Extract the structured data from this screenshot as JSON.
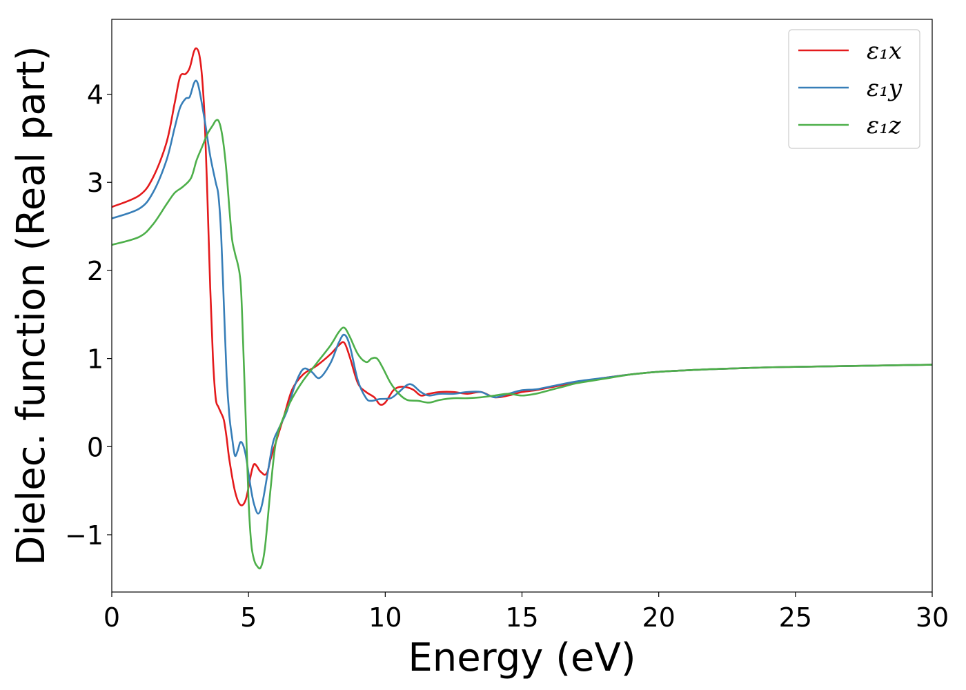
{
  "chart_data": {
    "type": "line",
    "title": "",
    "xlabel": "Energy (eV)",
    "ylabel": "Dielec. function (Real part)",
    "xlim": [
      0,
      30
    ],
    "ylim": [
      -1.65,
      4.85
    ],
    "xticks": [
      0,
      5,
      10,
      15,
      20,
      25,
      30
    ],
    "xtick_labels": [
      "0",
      "5",
      "10",
      "15",
      "20",
      "25",
      "30"
    ],
    "yticks": [
      -1,
      0,
      1,
      2,
      3,
      4
    ],
    "ytick_labels": [
      "−1",
      "0",
      "1",
      "2",
      "3",
      "4"
    ],
    "grid": false,
    "legend_position": "top-right",
    "series": [
      {
        "name": "ε₁x",
        "color": "#e41a1c",
        "x": [
          0,
          1,
          1.5,
          2,
          2.3,
          2.5,
          2.7,
          2.85,
          3.0,
          3.1,
          3.2,
          3.3,
          3.4,
          3.5,
          3.6,
          3.7,
          3.8,
          3.9,
          4.0,
          4.1,
          4.2,
          4.3,
          4.5,
          4.7,
          4.9,
          5.1,
          5.2,
          5.3,
          5.4,
          5.5,
          5.6,
          5.7,
          5.8,
          6.0,
          6.3,
          6.6,
          7.0,
          7.5,
          8.0,
          8.3,
          8.5,
          8.7,
          9.0,
          9.3,
          9.6,
          9.8,
          10.0,
          10.3,
          10.6,
          11.0,
          11.3,
          11.6,
          12.0,
          12.5,
          13.0,
          13.5,
          14.0,
          14.5,
          15.0,
          15.5,
          16.0,
          17.0,
          18.0,
          19.0,
          20.0,
          22.0,
          24.0,
          26.0,
          28.0,
          30.0
        ],
        "values": [
          2.72,
          2.85,
          3.05,
          3.45,
          3.9,
          4.2,
          4.23,
          4.3,
          4.48,
          4.52,
          4.45,
          4.2,
          3.7,
          2.8,
          1.8,
          1.0,
          0.55,
          0.45,
          0.38,
          0.3,
          0.1,
          -0.15,
          -0.5,
          -0.66,
          -0.6,
          -0.3,
          -0.2,
          -0.22,
          -0.27,
          -0.3,
          -0.32,
          -0.28,
          -0.15,
          0.05,
          0.35,
          0.65,
          0.82,
          0.92,
          1.05,
          1.15,
          1.18,
          1.02,
          0.72,
          0.62,
          0.56,
          0.48,
          0.5,
          0.64,
          0.68,
          0.65,
          0.58,
          0.6,
          0.62,
          0.62,
          0.6,
          0.62,
          0.56,
          0.58,
          0.62,
          0.64,
          0.67,
          0.73,
          0.78,
          0.82,
          0.85,
          0.88,
          0.9,
          0.91,
          0.92,
          0.93
        ]
      },
      {
        "name": "ε₁y",
        "color": "#377eb8",
        "x": [
          0,
          1,
          1.5,
          2,
          2.3,
          2.5,
          2.7,
          2.85,
          3.0,
          3.1,
          3.2,
          3.4,
          3.6,
          3.8,
          3.9,
          4.0,
          4.1,
          4.2,
          4.3,
          4.4,
          4.5,
          4.6,
          4.7,
          4.8,
          4.9,
          5.0,
          5.1,
          5.2,
          5.35,
          5.5,
          5.7,
          5.9,
          6.1,
          6.4,
          6.7,
          7.0,
          7.3,
          7.6,
          8.0,
          8.3,
          8.5,
          8.7,
          9.0,
          9.3,
          9.5,
          9.8,
          10.2,
          10.5,
          10.8,
          11.0,
          11.3,
          11.6,
          12.0,
          12.5,
          13.0,
          13.5,
          14.0,
          14.5,
          15.0,
          15.5,
          16.0,
          17.0,
          18.0,
          19.0,
          20.0,
          22.0,
          24.0,
          26.0,
          28.0,
          30.0
        ],
        "values": [
          2.59,
          2.7,
          2.88,
          3.25,
          3.62,
          3.85,
          3.95,
          3.97,
          4.12,
          4.15,
          4.05,
          3.7,
          3.3,
          3.0,
          2.85,
          2.4,
          1.6,
          0.8,
          0.35,
          0.1,
          -0.1,
          -0.05,
          0.05,
          0.02,
          -0.1,
          -0.3,
          -0.5,
          -0.65,
          -0.76,
          -0.65,
          -0.3,
          0.05,
          0.2,
          0.4,
          0.7,
          0.88,
          0.85,
          0.78,
          0.95,
          1.18,
          1.27,
          1.15,
          0.75,
          0.55,
          0.52,
          0.54,
          0.55,
          0.62,
          0.7,
          0.7,
          0.62,
          0.58,
          0.6,
          0.6,
          0.62,
          0.62,
          0.56,
          0.6,
          0.64,
          0.65,
          0.68,
          0.74,
          0.78,
          0.82,
          0.85,
          0.88,
          0.9,
          0.91,
          0.92,
          0.93
        ]
      },
      {
        "name": "ε₁z",
        "color": "#4daf4a",
        "x": [
          0,
          1,
          1.5,
          2,
          2.3,
          2.6,
          2.9,
          3.1,
          3.3,
          3.5,
          3.7,
          3.8,
          3.9,
          4.0,
          4.1,
          4.2,
          4.3,
          4.4,
          4.5,
          4.7,
          4.8,
          4.9,
          5.0,
          5.1,
          5.2,
          5.3,
          5.45,
          5.6,
          5.8,
          6.0,
          6.3,
          6.6,
          7.0,
          7.5,
          8.0,
          8.3,
          8.5,
          8.7,
          9.0,
          9.3,
          9.5,
          9.7,
          9.9,
          10.2,
          10.5,
          10.8,
          11.2,
          11.6,
          12.0,
          12.5,
          13.0,
          13.5,
          14.0,
          14.5,
          15.0,
          15.5,
          16.0,
          16.5,
          17.0,
          18.0,
          19.0,
          20.0,
          22.0,
          24.0,
          26.0,
          28.0,
          30.0
        ],
        "values": [
          2.29,
          2.38,
          2.52,
          2.75,
          2.88,
          2.95,
          3.05,
          3.25,
          3.4,
          3.55,
          3.65,
          3.7,
          3.7,
          3.6,
          3.4,
          3.1,
          2.7,
          2.35,
          2.2,
          1.9,
          1.2,
          0.3,
          -0.6,
          -1.1,
          -1.28,
          -1.35,
          -1.37,
          -1.15,
          -0.5,
          0.05,
          0.35,
          0.55,
          0.75,
          0.95,
          1.15,
          1.3,
          1.35,
          1.25,
          1.05,
          0.96,
          1.0,
          1.0,
          0.9,
          0.72,
          0.6,
          0.53,
          0.52,
          0.5,
          0.53,
          0.55,
          0.55,
          0.56,
          0.58,
          0.6,
          0.58,
          0.6,
          0.64,
          0.68,
          0.72,
          0.77,
          0.82,
          0.85,
          0.88,
          0.9,
          0.91,
          0.92,
          0.93
        ]
      }
    ]
  }
}
